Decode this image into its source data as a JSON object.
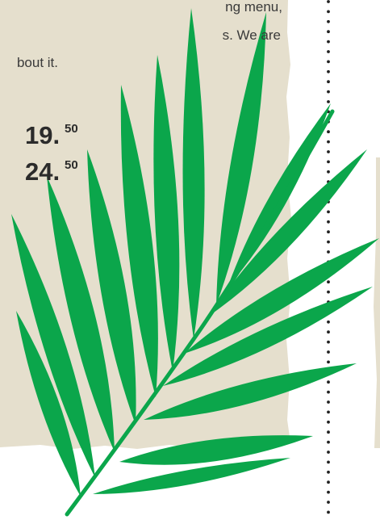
{
  "menu_text": {
    "lines": [
      "ng menu,",
      "s. We are",
      "bout it."
    ]
  },
  "prices": [
    {
      "main": "19.",
      "cents": "50"
    },
    {
      "main": "24.",
      "cents": "50"
    }
  ]
}
